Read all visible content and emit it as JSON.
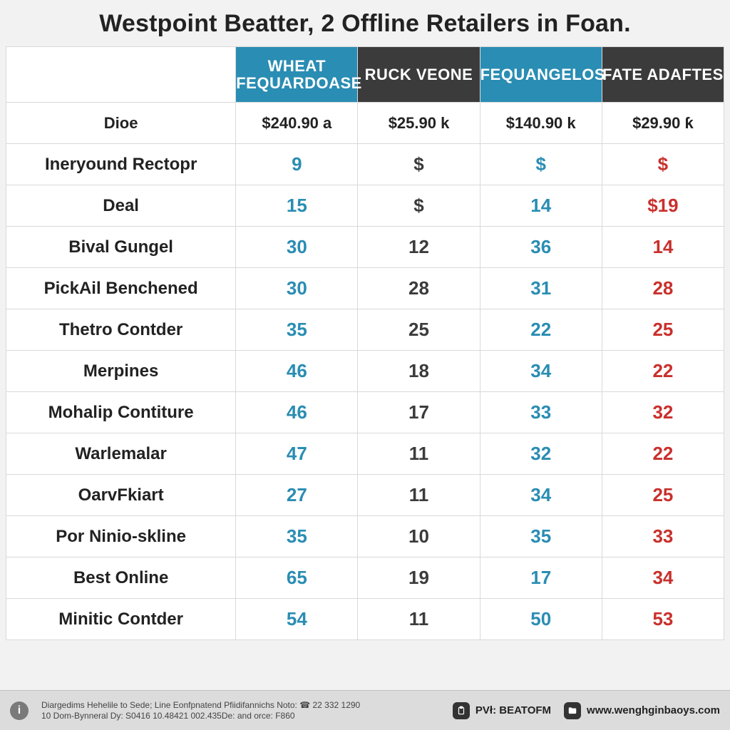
{
  "title": "Westpoint Beatter, 2 Offline Retailers in Foan.",
  "colors": {
    "teal": "#2a8db3",
    "dark": "#3b3b3b",
    "red": "#c9302c",
    "page_bg": "#f2f2f2",
    "grid": "#d9d9d9",
    "footer_bg": "#dcdcdc"
  },
  "table": {
    "col_widths_pct": [
      32,
      17,
      17,
      17,
      17
    ],
    "header_bg": [
      "",
      "teal",
      "dark",
      "teal",
      "dark"
    ],
    "columns": [
      "",
      "WHEAT FEQUARDOASE",
      "RUCK VEONE",
      "FEQUANGELOS",
      "FATE ADAFTES"
    ],
    "price_row": {
      "label": "Dioe",
      "cells": [
        "$240.90 a",
        "$25.90 k",
        "$140.90 k",
        "$29.90 ƙ"
      ]
    },
    "value_colors": [
      "teal",
      "dark",
      "teal",
      "red"
    ],
    "rows": [
      {
        "label": "Ineryound Rectopr",
        "cells": [
          "9",
          "$",
          "$",
          "$"
        ]
      },
      {
        "label": "Deal",
        "cells": [
          "15",
          "$",
          "14",
          "$19"
        ]
      },
      {
        "label": "Bival Gungel",
        "cells": [
          "30",
          "12",
          "36",
          "14"
        ]
      },
      {
        "label": "PickAil Benchened",
        "cells": [
          "30",
          "28",
          "31",
          "28"
        ]
      },
      {
        "label": "Thetro Contder",
        "cells": [
          "35",
          "25",
          "22",
          "25"
        ]
      },
      {
        "label": "Merpines",
        "cells": [
          "46",
          "18",
          "34",
          "22"
        ]
      },
      {
        "label": "Mohalip Contiture",
        "cells": [
          "46",
          "17",
          "33",
          "32"
        ]
      },
      {
        "label": "Warlemalar",
        "cells": [
          "47",
          "11",
          "32",
          "22"
        ]
      },
      {
        "label": "OarvFkiart",
        "cells": [
          "27",
          "11",
          "34",
          "25"
        ]
      },
      {
        "label": "Por Ninio-skline",
        "cells": [
          "35",
          "10",
          "35",
          "33"
        ]
      },
      {
        "label": "Best Online",
        "cells": [
          "65",
          "19",
          "17",
          "34"
        ]
      },
      {
        "label": "Minitic Contder",
        "cells": [
          "54",
          "11",
          "50",
          "53"
        ]
      }
    ]
  },
  "footer": {
    "badge_glyph": "i",
    "disclaimer_line1": "Diargedims Hehelile to Sede; Line Eonfpnatend Pfiidifannichs Noto: ☎ 22 332 1290",
    "disclaimer_line2": "10 Dom-Bynneral Dy: S0416 10.48421 002.435De: and orce: F860",
    "mid_label": "PVł: BEATOFM",
    "site_label": "www.wenghginbaoys.com",
    "mid_icon": "paste-icon",
    "site_icon": "folder-icon"
  }
}
